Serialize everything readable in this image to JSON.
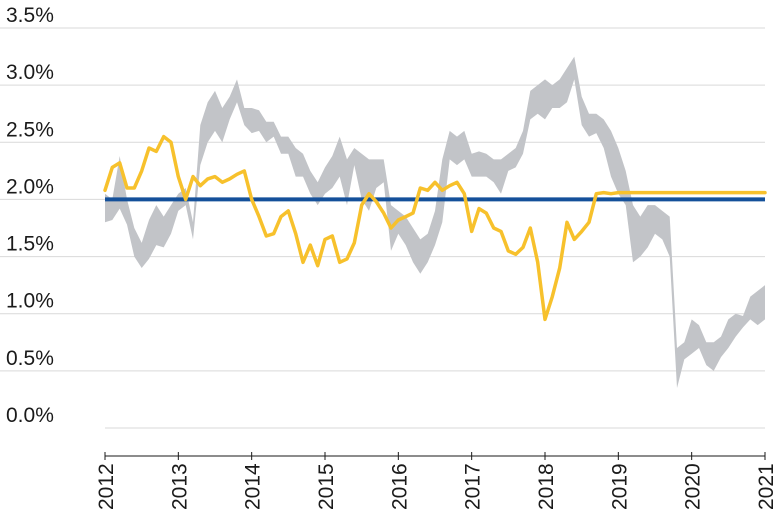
{
  "chart_data": {
    "type": "line",
    "title": "",
    "xlabel": "",
    "ylabel": "",
    "xlim": [
      2012,
      2021
    ],
    "ylim": [
      0,
      3.5
    ],
    "grid": true,
    "x_ticks": [
      "2012",
      "2013",
      "2014",
      "2015",
      "2016",
      "2017",
      "2018",
      "2019",
      "2020",
      "2021"
    ],
    "y_ticks": [
      "0.0%",
      "0.5%",
      "1.0%",
      "1.5%",
      "2.0%",
      "2.5%",
      "3.0%",
      "3.5%"
    ],
    "colors": {
      "band": "#c2c4c8",
      "line": "#f7c12c",
      "reference": "#14509a",
      "grid": "#d9d9d9"
    },
    "band": {
      "x": [
        2012.0,
        2012.1,
        2012.2,
        2012.3,
        2012.4,
        2012.5,
        2012.6,
        2012.7,
        2012.8,
        2012.9,
        2013.0,
        2013.1,
        2013.2,
        2013.3,
        2013.4,
        2013.5,
        2013.6,
        2013.7,
        2013.8,
        2013.9,
        2014.0,
        2014.1,
        2014.2,
        2014.3,
        2014.4,
        2014.5,
        2014.6,
        2014.7,
        2014.8,
        2014.9,
        2015.0,
        2015.1,
        2015.2,
        2015.3,
        2015.4,
        2015.5,
        2015.6,
        2015.7,
        2015.8,
        2015.9,
        2016.0,
        2016.1,
        2016.2,
        2016.3,
        2016.4,
        2016.5,
        2016.6,
        2016.7,
        2016.8,
        2016.9,
        2017.0,
        2017.1,
        2017.2,
        2017.3,
        2017.4,
        2017.5,
        2017.6,
        2017.7,
        2017.8,
        2017.9,
        2018.0,
        2018.1,
        2018.2,
        2018.3,
        2018.4,
        2018.5,
        2018.6,
        2018.7,
        2018.8,
        2018.9,
        2019.0,
        2019.1,
        2019.2,
        2019.3,
        2019.4,
        2019.5,
        2019.6,
        2019.7,
        2019.8,
        2019.9,
        2020.0,
        2020.1,
        2020.2,
        2020.3,
        2020.4,
        2020.5,
        2020.6,
        2020.7,
        2020.8,
        2020.9,
        2021.0
      ],
      "low": [
        1.8,
        1.82,
        1.92,
        1.78,
        1.5,
        1.4,
        1.48,
        1.6,
        1.58,
        1.7,
        1.9,
        1.95,
        1.65,
        2.3,
        2.5,
        2.6,
        2.5,
        2.7,
        2.85,
        2.65,
        2.58,
        2.6,
        2.5,
        2.55,
        2.4,
        2.4,
        2.2,
        2.2,
        2.05,
        1.95,
        2.05,
        2.1,
        2.2,
        1.95,
        2.3,
        2.0,
        1.9,
        2.1,
        2.15,
        1.55,
        1.7,
        1.6,
        1.45,
        1.35,
        1.45,
        1.6,
        1.8,
        2.35,
        2.3,
        2.35,
        2.2,
        2.2,
        2.2,
        2.15,
        2.05,
        2.25,
        2.28,
        2.4,
        2.7,
        2.75,
        2.7,
        2.8,
        2.8,
        2.85,
        3.05,
        2.65,
        2.55,
        2.58,
        2.45,
        2.2,
        2.05,
        1.95,
        1.45,
        1.5,
        1.58,
        1.7,
        1.65,
        1.5,
        0.35,
        0.6,
        0.65,
        0.7,
        0.55,
        0.5,
        0.62,
        0.7,
        0.8,
        0.88,
        0.95,
        0.9,
        0.95
      ],
      "high": [
        2.05,
        2.0,
        2.38,
        2.0,
        1.75,
        1.62,
        1.82,
        1.95,
        1.85,
        1.95,
        2.05,
        2.1,
        1.8,
        2.65,
        2.85,
        2.95,
        2.8,
        2.9,
        3.05,
        2.8,
        2.8,
        2.78,
        2.68,
        2.68,
        2.55,
        2.55,
        2.45,
        2.4,
        2.25,
        2.15,
        2.28,
        2.38,
        2.55,
        2.35,
        2.45,
        2.4,
        2.35,
        2.35,
        2.35,
        1.95,
        1.9,
        1.85,
        1.75,
        1.65,
        1.7,
        1.9,
        2.35,
        2.6,
        2.55,
        2.6,
        2.4,
        2.42,
        2.4,
        2.35,
        2.35,
        2.4,
        2.45,
        2.6,
        2.95,
        3.0,
        3.05,
        3.0,
        3.05,
        3.15,
        3.25,
        2.9,
        2.75,
        2.75,
        2.7,
        2.6,
        2.45,
        2.25,
        1.95,
        1.85,
        1.95,
        1.95,
        1.9,
        1.85,
        0.7,
        0.75,
        0.95,
        0.9,
        0.75,
        0.75,
        0.8,
        0.95,
        1.0,
        0.98,
        1.15,
        1.2,
        1.25
      ]
    },
    "series": [
      {
        "x": [
          2012.0,
          2012.1,
          2012.2,
          2012.3,
          2012.4,
          2012.5,
          2012.6,
          2012.7,
          2012.8,
          2012.9,
          2013.0,
          2013.1,
          2013.2,
          2013.3,
          2013.4,
          2013.5,
          2013.6,
          2013.7,
          2013.8,
          2013.9,
          2014.0,
          2014.1,
          2014.2,
          2014.3,
          2014.4,
          2014.5,
          2014.6,
          2014.7,
          2014.8,
          2014.9,
          2015.0,
          2015.1,
          2015.2,
          2015.3,
          2015.4,
          2015.5,
          2015.6,
          2015.7,
          2015.8,
          2015.9,
          2016.0,
          2016.1,
          2016.2,
          2016.3,
          2016.4,
          2016.5,
          2016.6,
          2016.7,
          2016.8,
          2016.9,
          2017.0,
          2017.1,
          2017.2,
          2017.3,
          2017.4,
          2017.5,
          2017.6,
          2017.7,
          2017.8,
          2017.9,
          2018.0,
          2018.1,
          2018.2,
          2018.3,
          2018.4,
          2018.5,
          2018.6,
          2018.7,
          2018.8,
          2018.9,
          2019.0,
          2019.1,
          2019.2,
          2019.3,
          2019.4,
          2019.5,
          2019.6,
          2019.7,
          2019.8,
          2019.9,
          2020.0,
          2020.1,
          2020.2,
          2020.3,
          2020.4,
          2020.5,
          2020.6,
          2020.7,
          2020.8,
          2020.9,
          2021.0
        ],
        "values": [
          2.08,
          2.28,
          2.32,
          2.1,
          2.1,
          2.25,
          2.45,
          2.42,
          2.55,
          2.5,
          2.2,
          2.0,
          2.2,
          2.12,
          2.18,
          2.2,
          2.15,
          2.18,
          2.22,
          2.25,
          2.0,
          1.85,
          1.68,
          1.7,
          1.85,
          1.9,
          1.7,
          1.45,
          1.6,
          1.42,
          1.65,
          1.68,
          1.45,
          1.48,
          1.62,
          1.95,
          2.05,
          1.98,
          1.88,
          1.75,
          1.82,
          1.85,
          1.88,
          2.1,
          2.08,
          2.15,
          2.08,
          2.12,
          2.15,
          2.05,
          1.72,
          1.92,
          1.88,
          1.75,
          1.72,
          1.55,
          1.52,
          1.58,
          1.75,
          1.45,
          0.95,
          1.15,
          1.4,
          1.8,
          1.65,
          1.72,
          1.8,
          2.05,
          2.06,
          2.05,
          2.06,
          2.06,
          2.06,
          2.06,
          2.06,
          2.06,
          2.06,
          2.06,
          2.06,
          2.06,
          2.06,
          2.06,
          2.06,
          2.06,
          2.06,
          2.06,
          2.06,
          2.06,
          2.06,
          2.06,
          2.06
        ]
      }
    ],
    "reference_line": {
      "y": 2.0
    }
  }
}
